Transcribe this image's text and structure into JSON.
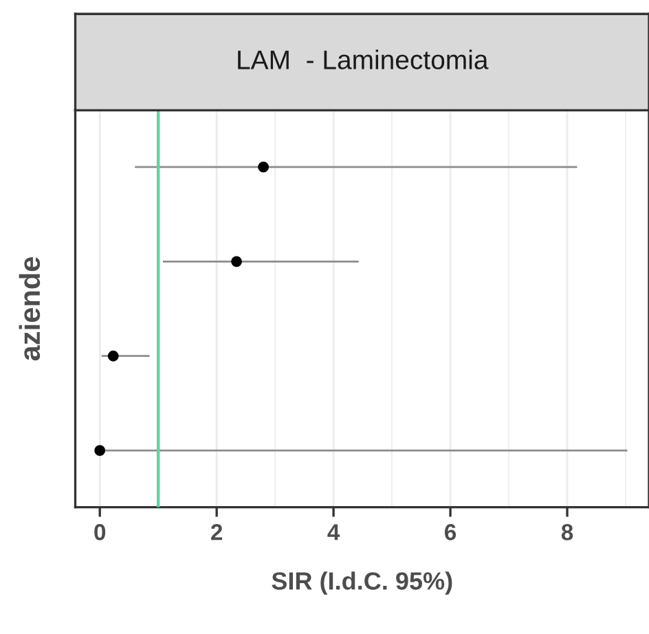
{
  "chart_data": {
    "type": "scatter",
    "orientation": "horizontal",
    "title": "LAM  - Laminectomia",
    "xlabel": "SIR (I.d.C. 95%)",
    "ylabel": "aziende",
    "categories": [
      null,
      null,
      null,
      null
    ],
    "values": [
      2.8,
      2.34,
      0.23,
      0
    ],
    "errors": [
      [
        0.6,
        8.17
      ],
      [
        1.08,
        4.43
      ],
      [
        0.03,
        0.85
      ],
      [
        0,
        9.03
      ]
    ],
    "color": "#000000",
    "marker": "circle",
    "xlim": [
      -0.42,
      9.4
    ],
    "xticks": [
      0,
      2,
      4,
      6,
      8
    ],
    "ref_lines": [
      {
        "axis": "x",
        "value": 1,
        "color": "#5fd3a5"
      }
    ],
    "grid": "x"
  }
}
